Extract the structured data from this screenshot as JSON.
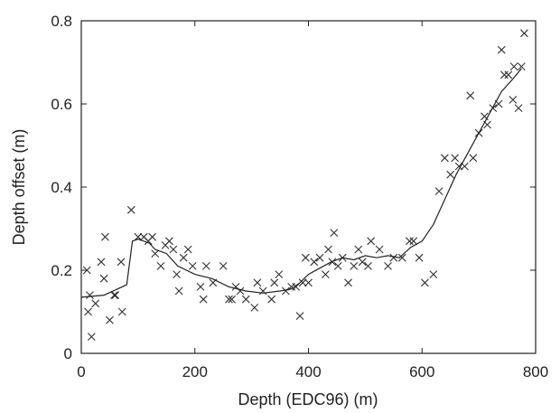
{
  "chart_data": {
    "type": "scatter",
    "xlabel": "Depth (EDC96) (m)",
    "ylabel": "Depth offset (m)",
    "xlim": [
      0,
      800
    ],
    "ylim": [
      0,
      0.8
    ],
    "xticks": [
      0,
      200,
      400,
      600,
      800
    ],
    "yticks": [
      0,
      0.2,
      0.4,
      0.6,
      0.8
    ],
    "grid": false,
    "legend": "none",
    "colors": {
      "marker": "#333333",
      "line": "#222222",
      "axis": "#222222"
    },
    "series": [
      {
        "kind": "markers",
        "marker": "x",
        "points": [
          [
            10,
            0.2
          ],
          [
            12,
            0.1
          ],
          [
            15,
            0.14
          ],
          [
            18,
            0.04
          ],
          [
            25,
            0.12
          ],
          [
            35,
            0.22
          ],
          [
            40,
            0.18
          ],
          [
            42,
            0.28
          ],
          [
            50,
            0.08
          ],
          [
            58,
            0.14
          ],
          [
            60,
            0.14
          ],
          [
            70,
            0.22
          ],
          [
            72,
            0.1
          ],
          [
            88,
            0.345
          ],
          [
            100,
            0.28
          ],
          [
            110,
            0.28
          ],
          [
            118,
            0.27
          ],
          [
            125,
            0.28
          ],
          [
            130,
            0.24
          ],
          [
            140,
            0.21
          ],
          [
            148,
            0.26
          ],
          [
            155,
            0.27
          ],
          [
            162,
            0.25
          ],
          [
            168,
            0.19
          ],
          [
            172,
            0.15
          ],
          [
            180,
            0.23
          ],
          [
            188,
            0.25
          ],
          [
            196,
            0.21
          ],
          [
            210,
            0.16
          ],
          [
            215,
            0.13
          ],
          [
            220,
            0.21
          ],
          [
            232,
            0.17
          ],
          [
            250,
            0.21
          ],
          [
            260,
            0.13
          ],
          [
            265,
            0.13
          ],
          [
            272,
            0.16
          ],
          [
            280,
            0.15
          ],
          [
            290,
            0.13
          ],
          [
            305,
            0.11
          ],
          [
            310,
            0.17
          ],
          [
            320,
            0.15
          ],
          [
            335,
            0.13
          ],
          [
            340,
            0.17
          ],
          [
            348,
            0.19
          ],
          [
            360,
            0.15
          ],
          [
            370,
            0.16
          ],
          [
            378,
            0.16
          ],
          [
            385,
            0.09
          ],
          [
            390,
            0.17
          ],
          [
            395,
            0.23
          ],
          [
            400,
            0.17
          ],
          [
            410,
            0.22
          ],
          [
            420,
            0.23
          ],
          [
            430,
            0.19
          ],
          [
            435,
            0.25
          ],
          [
            442,
            0.22
          ],
          [
            445,
            0.29
          ],
          [
            452,
            0.21
          ],
          [
            460,
            0.23
          ],
          [
            470,
            0.17
          ],
          [
            480,
            0.21
          ],
          [
            488,
            0.25
          ],
          [
            495,
            0.22
          ],
          [
            505,
            0.21
          ],
          [
            510,
            0.27
          ],
          [
            525,
            0.25
          ],
          [
            540,
            0.21
          ],
          [
            550,
            0.23
          ],
          [
            565,
            0.23
          ],
          [
            578,
            0.27
          ],
          [
            585,
            0.27
          ],
          [
            595,
            0.23
          ],
          [
            605,
            0.17
          ],
          [
            620,
            0.19
          ],
          [
            630,
            0.39
          ],
          [
            640,
            0.47
          ],
          [
            650,
            0.43
          ],
          [
            658,
            0.47
          ],
          [
            665,
            0.45
          ],
          [
            675,
            0.45
          ],
          [
            685,
            0.62
          ],
          [
            690,
            0.47
          ],
          [
            700,
            0.53
          ],
          [
            710,
            0.57
          ],
          [
            715,
            0.55
          ],
          [
            725,
            0.59
          ],
          [
            735,
            0.6
          ],
          [
            740,
            0.73
          ],
          [
            745,
            0.67
          ],
          [
            752,
            0.67
          ],
          [
            760,
            0.61
          ],
          [
            762,
            0.69
          ],
          [
            770,
            0.59
          ],
          [
            775,
            0.69
          ],
          [
            780,
            0.77
          ]
        ]
      },
      {
        "kind": "line",
        "points": [
          [
            0,
            0.135
          ],
          [
            40,
            0.14
          ],
          [
            80,
            0.165
          ],
          [
            90,
            0.27
          ],
          [
            100,
            0.275
          ],
          [
            110,
            0.27
          ],
          [
            120,
            0.265
          ],
          [
            130,
            0.25
          ],
          [
            150,
            0.24
          ],
          [
            170,
            0.21
          ],
          [
            200,
            0.19
          ],
          [
            230,
            0.18
          ],
          [
            260,
            0.16
          ],
          [
            290,
            0.15
          ],
          [
            320,
            0.145
          ],
          [
            350,
            0.15
          ],
          [
            370,
            0.155
          ],
          [
            385,
            0.17
          ],
          [
            400,
            0.19
          ],
          [
            420,
            0.205
          ],
          [
            440,
            0.22
          ],
          [
            460,
            0.23
          ],
          [
            480,
            0.225
          ],
          [
            500,
            0.235
          ],
          [
            520,
            0.23
          ],
          [
            540,
            0.235
          ],
          [
            560,
            0.23
          ],
          [
            580,
            0.255
          ],
          [
            600,
            0.27
          ],
          [
            620,
            0.31
          ],
          [
            640,
            0.37
          ],
          [
            660,
            0.43
          ],
          [
            680,
            0.48
          ],
          [
            700,
            0.53
          ],
          [
            720,
            0.58
          ],
          [
            740,
            0.63
          ],
          [
            760,
            0.66
          ],
          [
            775,
            0.685
          ]
        ]
      }
    ]
  }
}
